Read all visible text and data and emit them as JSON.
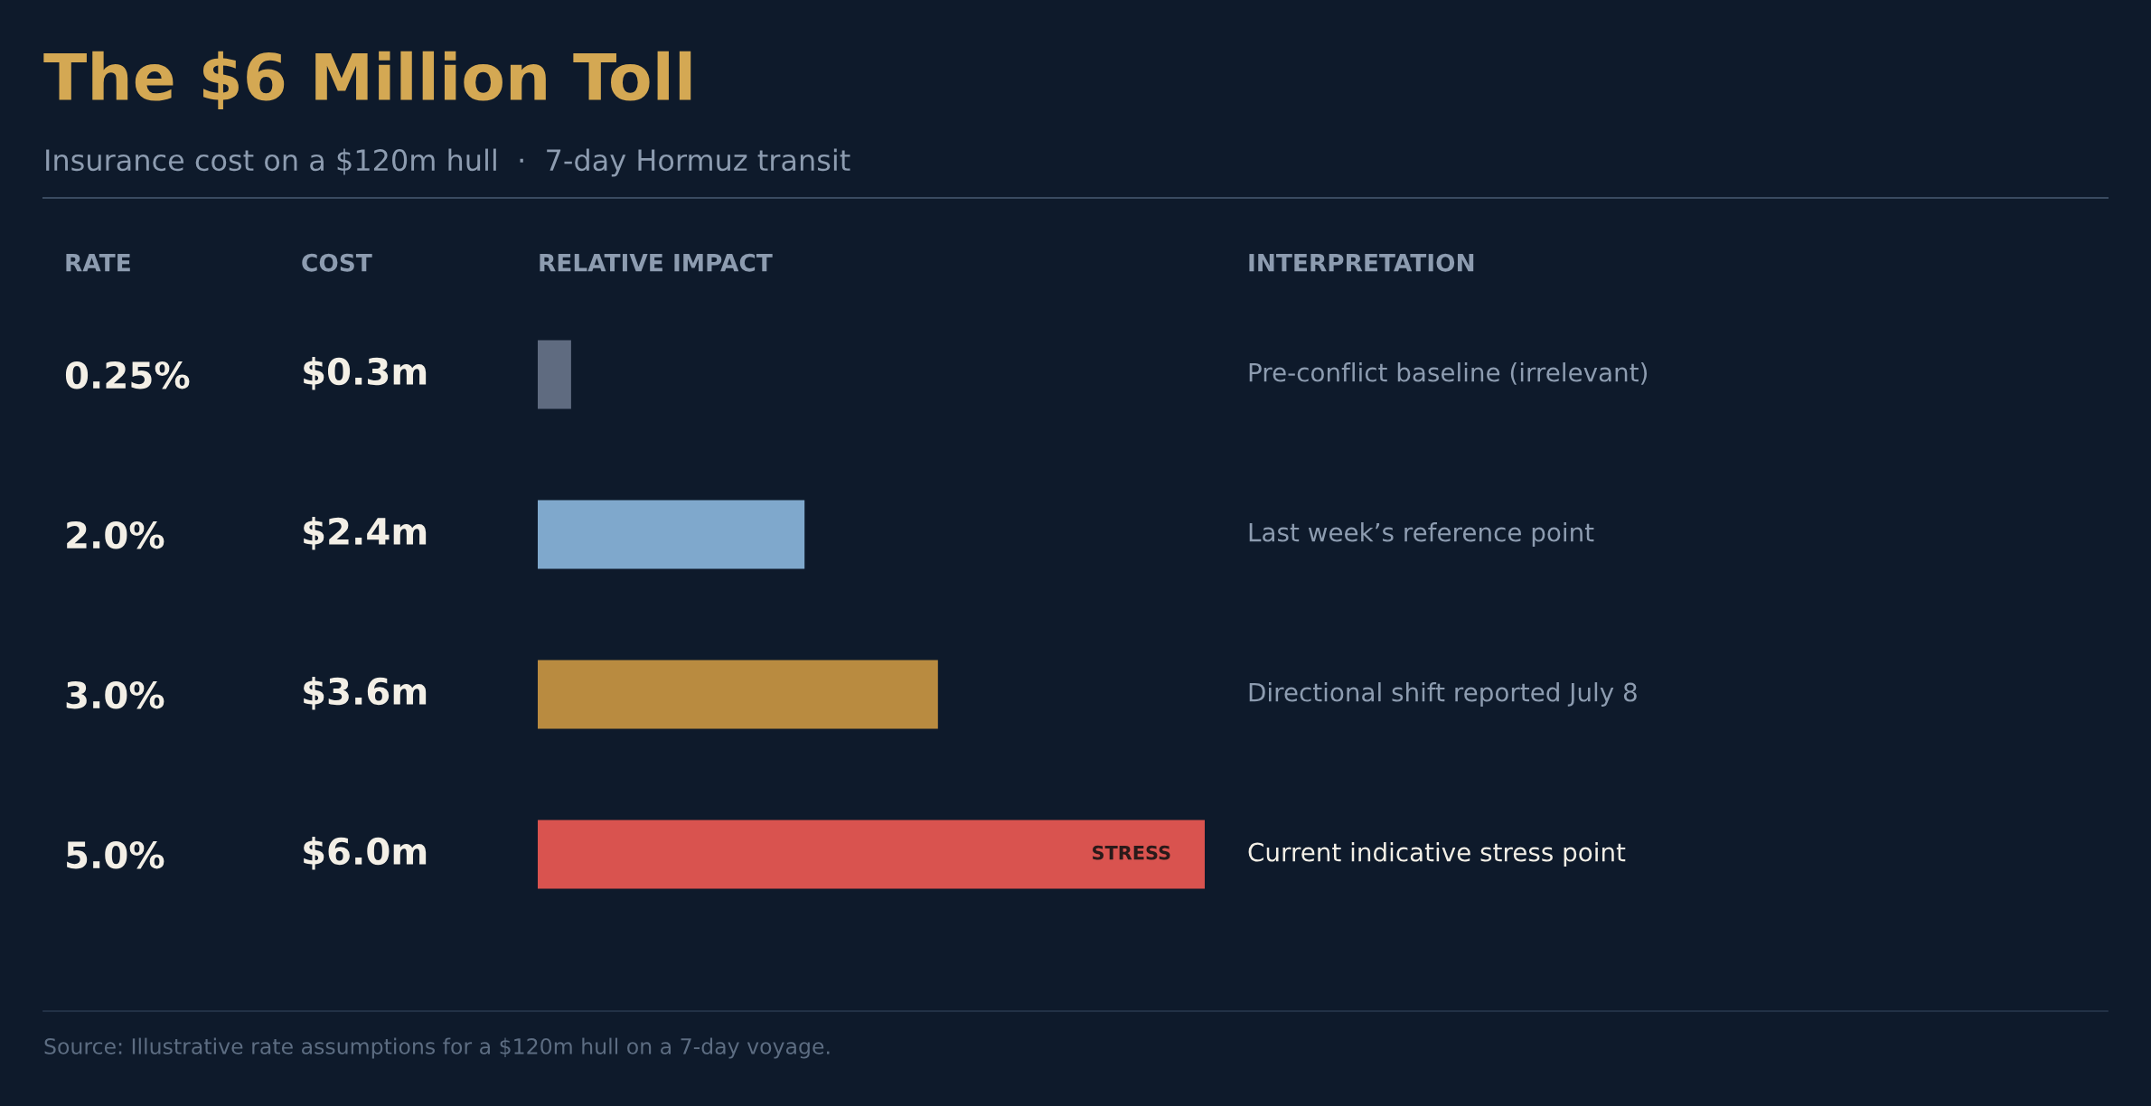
{
  "chart_data": {
    "type": "bar",
    "orientation": "horizontal",
    "title": "The $6 Million Toll",
    "subtitle": "Insurance cost on a $120m hull  ·  7-day Hormuz transit",
    "ylabel": "RATE",
    "xlabel": "RELATIVE IMPACT",
    "categories": [
      "0.25%",
      "2.0%",
      "3.0%",
      "5.0%"
    ],
    "values": [
      0.3,
      2.4,
      3.6,
      6.0
    ],
    "value_labels": [
      "$0.3m",
      "$2.4m",
      "$3.6m",
      "$6.0m"
    ],
    "colors": [
      "#5f6b80",
      "#7fa8cc",
      "#b98b40",
      "#d9534f"
    ],
    "annotations": [
      "COST",
      "INTERPRETATION",
      "Pre-conflict baseline (irrelevant)",
      "Last week’s reference point",
      "Directional shift reported July 8",
      "Current indicative stress point",
      "STRESS",
      "Source: Illustrative rate assumptions for a $120m hull on a 7-day voyage."
    ],
    "grid": false
  }
}
